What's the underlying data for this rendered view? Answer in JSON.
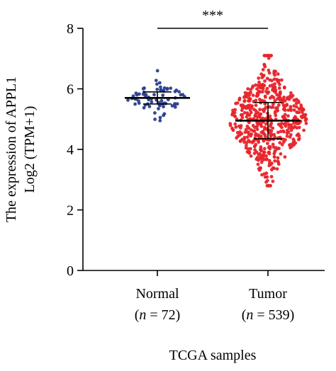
{
  "chart_data": {
    "type": "scatter",
    "subtype": "beeswarm-dot-plot",
    "title": "",
    "ylabel_line1": "The expression of APPL1",
    "ylabel_line2": "Log2 (TPM+1)",
    "xlabel": "TCGA samples",
    "ylim": [
      0,
      8
    ],
    "yticks": [
      0,
      2,
      4,
      6,
      8
    ],
    "grid": false,
    "legend": "none",
    "significance": "***",
    "groups": [
      {
        "name": "Normal",
        "n_label_prefix": "(",
        "n_label_italic": "n",
        "n_label_suffix": " = 72)",
        "n": 72,
        "color": "#2b3f8c",
        "median": 5.7,
        "q1": 5.5,
        "q3": 5.9,
        "min": 4.95,
        "max": 6.6
      },
      {
        "name": "Tumor",
        "n_label_prefix": "(",
        "n_label_italic": "n",
        "n_label_suffix": " = 539)",
        "n": 539,
        "color": "#e8242a",
        "median": 4.95,
        "q1": 4.35,
        "q3": 5.55,
        "min": 2.8,
        "max": 7.1
      }
    ]
  }
}
